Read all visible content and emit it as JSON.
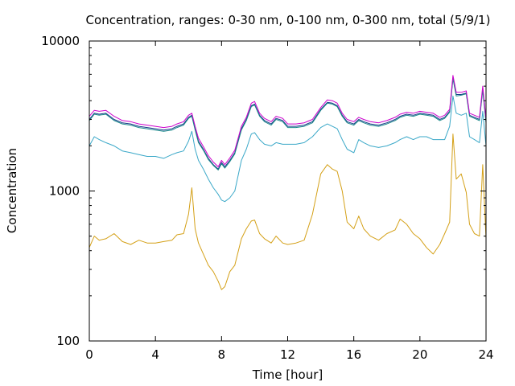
{
  "chart_data": {
    "type": "line",
    "title": "Concentration, ranges: 0-30 nm, 0-100 nm, 0-300 nm, total (5/9/1)",
    "xlabel": "Time [hour]",
    "ylabel": "Concentration",
    "xlim": [
      0,
      24
    ],
    "ylim": [
      100,
      10000
    ],
    "yscale": "log",
    "x_ticks": [
      "0",
      "4",
      "8",
      "12",
      "16",
      "20",
      "24"
    ],
    "y_ticks": [
      "100",
      "1000",
      "10000"
    ],
    "grid": false,
    "legend": "none",
    "series": [
      {
        "color": "#d4a017",
        "x": [
          0,
          0.3,
          0.6,
          1,
          1.5,
          2,
          2.5,
          3,
          3.5,
          4,
          4.5,
          5,
          5.3,
          5.7,
          6,
          6.2,
          6.4,
          6.6,
          6.9,
          7.2,
          7.5,
          7.8,
          8,
          8.2,
          8.5,
          8.8,
          9.2,
          9.5,
          9.8,
          10,
          10.3,
          10.6,
          11,
          11.3,
          11.7,
          12,
          12.5,
          13,
          13.5,
          14,
          14.4,
          14.7,
          15,
          15.3,
          15.6,
          16,
          16.3,
          16.6,
          17,
          17.5,
          18,
          18.5,
          18.8,
          19.2,
          19.6,
          20,
          20.4,
          20.8,
          21.2,
          21.5,
          21.8,
          22,
          22.2,
          22.5,
          22.8,
          23,
          23.3,
          23.6,
          23.8,
          24
        ],
        "values": [
          420,
          500,
          470,
          480,
          520,
          460,
          440,
          470,
          450,
          450,
          460,
          470,
          510,
          520,
          700,
          1050,
          560,
          450,
          380,
          320,
          290,
          250,
          220,
          230,
          290,
          320,
          480,
          560,
          630,
          640,
          520,
          480,
          450,
          500,
          450,
          440,
          450,
          470,
          700,
          1300,
          1500,
          1400,
          1350,
          1000,
          620,
          560,
          680,
          560,
          500,
          470,
          520,
          550,
          650,
          600,
          520,
          480,
          420,
          380,
          440,
          520,
          620,
          2400,
          1200,
          1300,
          980,
          600,
          520,
          500,
          1500,
          480
        ]
      },
      {
        "color": "#3aa8c8",
        "x": [
          0,
          0.3,
          0.6,
          1,
          1.5,
          2,
          2.5,
          3,
          3.5,
          4,
          4.5,
          5,
          5.3,
          5.7,
          6,
          6.2,
          6.4,
          6.6,
          6.9,
          7.2,
          7.5,
          7.8,
          8,
          8.2,
          8.5,
          8.8,
          9.2,
          9.5,
          9.8,
          10,
          10.3,
          10.6,
          11,
          11.3,
          11.7,
          12,
          12.5,
          13,
          13.5,
          14,
          14.4,
          14.7,
          15,
          15.3,
          15.6,
          16,
          16.3,
          16.6,
          17,
          17.5,
          18,
          18.5,
          18.8,
          19.2,
          19.6,
          20,
          20.4,
          20.8,
          21.2,
          21.5,
          21.8,
          22,
          22.2,
          22.5,
          22.8,
          23,
          23.3,
          23.6,
          23.8,
          24
        ],
        "values": [
          2000,
          2300,
          2200,
          2100,
          2000,
          1850,
          1800,
          1750,
          1700,
          1700,
          1650,
          1750,
          1800,
          1850,
          2150,
          2500,
          1900,
          1600,
          1400,
          1200,
          1050,
          950,
          870,
          850,
          900,
          1000,
          1600,
          1900,
          2400,
          2450,
          2200,
          2050,
          2000,
          2100,
          2050,
          2050,
          2050,
          2100,
          2300,
          2650,
          2800,
          2700,
          2600,
          2200,
          1900,
          1800,
          2200,
          2100,
          2000,
          1950,
          2000,
          2100,
          2200,
          2300,
          2200,
          2300,
          2300,
          2200,
          2200,
          2200,
          2700,
          4300,
          3300,
          3200,
          3300,
          2300,
          2200,
          2100,
          3400,
          2000
        ]
      },
      {
        "color": "#1a3a8a",
        "x": [
          0,
          0.3,
          0.6,
          1,
          1.5,
          2,
          2.5,
          3,
          3.5,
          4,
          4.5,
          5,
          5.3,
          5.7,
          6,
          6.2,
          6.4,
          6.6,
          6.9,
          7.2,
          7.5,
          7.8,
          8,
          8.2,
          8.5,
          8.8,
          9.2,
          9.5,
          9.8,
          10,
          10.3,
          10.6,
          11,
          11.3,
          11.7,
          12,
          12.5,
          13,
          13.5,
          14,
          14.4,
          14.7,
          15,
          15.3,
          15.6,
          16,
          16.3,
          16.6,
          17,
          17.5,
          18,
          18.5,
          18.8,
          19.2,
          19.6,
          20,
          20.4,
          20.8,
          21.2,
          21.5,
          21.8,
          22,
          22.2,
          22.5,
          22.8,
          23,
          23.3,
          23.6,
          23.8,
          24
        ],
        "values": [
          3000,
          3300,
          3250,
          3300,
          3000,
          2850,
          2800,
          2700,
          2650,
          2600,
          2550,
          2600,
          2700,
          2800,
          3100,
          3200,
          2600,
          2150,
          1900,
          1650,
          1500,
          1400,
          1550,
          1450,
          1600,
          1800,
          2600,
          3000,
          3700,
          3800,
          3200,
          2950,
          2800,
          3050,
          2950,
          2700,
          2700,
          2750,
          2900,
          3500,
          3900,
          3850,
          3700,
          3200,
          2900,
          2800,
          3000,
          2900,
          2800,
          2750,
          2850,
          3000,
          3150,
          3250,
          3200,
          3300,
          3250,
          3200,
          3000,
          3100,
          3400,
          5700,
          4400,
          4400,
          4500,
          3200,
          3100,
          3000,
          4800,
          2900
        ]
      },
      {
        "color": "#1a8a8a",
        "x": [
          0,
          0.3,
          0.6,
          1,
          1.5,
          2,
          2.5,
          3,
          3.5,
          4,
          4.5,
          5,
          5.3,
          5.7,
          6,
          6.2,
          6.4,
          6.6,
          6.9,
          7.2,
          7.5,
          7.8,
          8,
          8.2,
          8.5,
          8.8,
          9.2,
          9.5,
          9.8,
          10,
          10.3,
          10.6,
          11,
          11.3,
          11.7,
          12,
          12.5,
          13,
          13.5,
          14,
          14.4,
          14.7,
          15,
          15.3,
          15.6,
          16,
          16.3,
          16.6,
          17,
          17.5,
          18,
          18.5,
          18.8,
          19.2,
          19.6,
          20,
          20.4,
          20.8,
          21.2,
          21.5,
          21.8,
          22,
          22.2,
          22.5,
          22.8,
          23,
          23.3,
          23.6,
          23.8,
          24
        ],
        "values": [
          2950,
          3250,
          3200,
          3250,
          2950,
          2800,
          2750,
          2650,
          2600,
          2550,
          2500,
          2550,
          2650,
          2750,
          3050,
          3150,
          2550,
          2100,
          1870,
          1620,
          1480,
          1380,
          1520,
          1420,
          1570,
          1770,
          2550,
          2950,
          3650,
          3750,
          3150,
          2900,
          2750,
          3000,
          2900,
          2650,
          2650,
          2700,
          2850,
          3450,
          3850,
          3800,
          3650,
          3150,
          2850,
          2750,
          2950,
          2850,
          2750,
          2700,
          2800,
          2950,
          3100,
          3200,
          3150,
          3250,
          3200,
          3150,
          2950,
          3050,
          3350,
          5600,
          4300,
          4350,
          4450,
          3150,
          3050,
          2950,
          4700,
          2850
        ]
      },
      {
        "color": "#cc00cc",
        "x": [
          0,
          0.3,
          0.6,
          1,
          1.5,
          2,
          2.5,
          3,
          3.5,
          4,
          4.5,
          5,
          5.3,
          5.7,
          6,
          6.2,
          6.4,
          6.6,
          6.9,
          7.2,
          7.5,
          7.8,
          8,
          8.2,
          8.5,
          8.8,
          9.2,
          9.5,
          9.8,
          10,
          10.3,
          10.6,
          11,
          11.3,
          11.7,
          12,
          12.5,
          13,
          13.5,
          14,
          14.4,
          14.7,
          15,
          15.3,
          15.6,
          16,
          16.3,
          16.6,
          17,
          17.5,
          18,
          18.5,
          18.8,
          19.2,
          19.6,
          20,
          20.4,
          20.8,
          21.2,
          21.5,
          21.8,
          22,
          22.2,
          22.5,
          22.8,
          23,
          23.3,
          23.6,
          23.8,
          24
        ],
        "values": [
          3150,
          3450,
          3400,
          3450,
          3150,
          2950,
          2900,
          2800,
          2750,
          2700,
          2650,
          2700,
          2800,
          2900,
          3200,
          3300,
          2700,
          2250,
          1980,
          1720,
          1560,
          1450,
          1600,
          1500,
          1660,
          1870,
          2700,
          3100,
          3850,
          3950,
          3300,
          3050,
          2900,
          3150,
          3050,
          2800,
          2800,
          2850,
          3000,
          3600,
          4050,
          4000,
          3850,
          3300,
          3000,
          2900,
          3100,
          3000,
          2900,
          2850,
          2950,
          3100,
          3250,
          3350,
          3300,
          3400,
          3350,
          3300,
          3100,
          3200,
          3500,
          5900,
          4550,
          4550,
          4650,
          3300,
          3200,
          3100,
          5000,
          3000
        ]
      }
    ]
  }
}
